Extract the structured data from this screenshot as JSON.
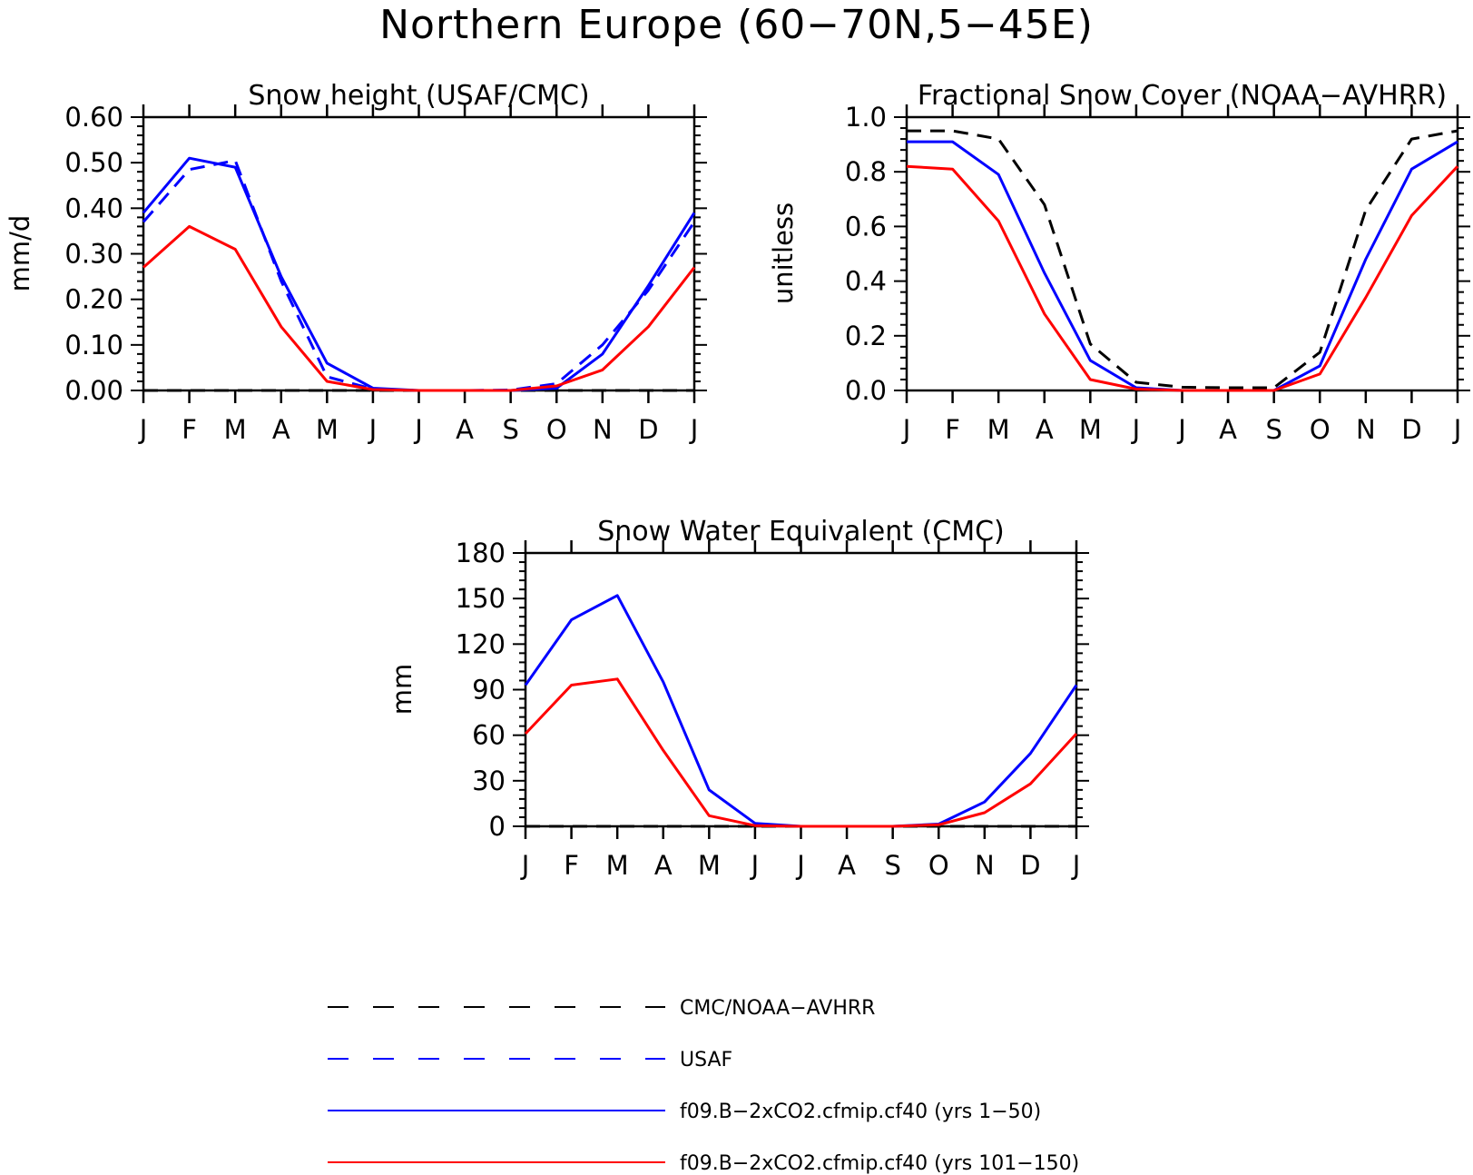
{
  "page_title": "Northern Europe (60−70N,5−45E)",
  "colors": {
    "observation": "#000000",
    "usaf": "#0000ff",
    "model_early": "#0000ff",
    "model_late": "#ff0000"
  },
  "legend": [
    {
      "label": "CMC/NOAA−AVHRR",
      "color": "#000000",
      "style": "dashed"
    },
    {
      "label": "USAF",
      "color": "#0000ff",
      "style": "dashed"
    },
    {
      "label": "f09.B−2xCO2.cfmip.cf40 (yrs 1−50)",
      "color": "#0000ff",
      "style": "solid"
    },
    {
      "label": "f09.B−2xCO2.cfmip.cf40 (yrs 101−150)",
      "color": "#ff0000",
      "style": "solid"
    }
  ],
  "chart_data": [
    {
      "type": "line",
      "title": "Snow height (USAF/CMC)",
      "ylabel": "mm/d",
      "xlabel": "",
      "categories": [
        "J",
        "F",
        "M",
        "A",
        "M",
        "J",
        "J",
        "A",
        "S",
        "O",
        "N",
        "D",
        "J"
      ],
      "ylim": [
        0,
        0.6
      ],
      "yticks": [
        "0.00",
        "0.10",
        "0.20",
        "0.30",
        "0.40",
        "0.50",
        "0.60"
      ],
      "grid": false,
      "series": [
        {
          "name": "CMC/NOAA−AVHRR",
          "color": "#000000",
          "style": "dashed",
          "values": [
            0,
            0,
            0,
            0,
            0,
            0,
            0,
            0,
            0,
            0,
            0,
            0,
            0
          ]
        },
        {
          "name": "USAF",
          "color": "#0000ff",
          "style": "dashed",
          "values": [
            0.37,
            0.485,
            0.505,
            0.24,
            0.03,
            0.003,
            0,
            0,
            0.001,
            0.015,
            0.1,
            0.22,
            0.37
          ]
        },
        {
          "name": "f09.B−2xCO2.cfmip.cf40 (yrs 1−50)",
          "color": "#0000ff",
          "style": "solid",
          "values": [
            0.39,
            0.51,
            0.49,
            0.25,
            0.06,
            0.005,
            0,
            0,
            0,
            0.005,
            0.08,
            0.23,
            0.39
          ]
        },
        {
          "name": "f09.B−2xCO2.cfmip.cf40 (yrs 101−150)",
          "color": "#ff0000",
          "style": "solid",
          "values": [
            0.27,
            0.36,
            0.31,
            0.14,
            0.02,
            0.002,
            0,
            0,
            0,
            0.01,
            0.045,
            0.14,
            0.27
          ]
        }
      ]
    },
    {
      "type": "line",
      "title": "Fractional Snow Cover (NOAA−AVHRR)",
      "ylabel": "unitless",
      "xlabel": "",
      "categories": [
        "J",
        "F",
        "M",
        "A",
        "M",
        "J",
        "J",
        "A",
        "S",
        "O",
        "N",
        "D",
        "J"
      ],
      "ylim": [
        0,
        1.0
      ],
      "yticks": [
        "0.0",
        "0.2",
        "0.4",
        "0.6",
        "0.8",
        "1.0"
      ],
      "grid": false,
      "series": [
        {
          "name": "CMC/NOAA−AVHRR",
          "color": "#000000",
          "style": "dashed",
          "values": [
            0.95,
            0.95,
            0.92,
            0.68,
            0.17,
            0.03,
            0.012,
            0.01,
            0.01,
            0.14,
            0.66,
            0.92,
            0.95
          ]
        },
        {
          "name": "f09.B−2xCO2.cfmip.cf40 (yrs 1−50)",
          "color": "#0000ff",
          "style": "solid",
          "values": [
            0.91,
            0.91,
            0.79,
            0.43,
            0.11,
            0.01,
            0,
            0,
            0,
            0.09,
            0.48,
            0.81,
            0.91
          ]
        },
        {
          "name": "f09.B−2xCO2.cfmip.cf40 (yrs 101−150)",
          "color": "#ff0000",
          "style": "solid",
          "values": [
            0.82,
            0.81,
            0.62,
            0.28,
            0.04,
            0.005,
            0,
            0,
            0,
            0.06,
            0.34,
            0.64,
            0.82
          ]
        }
      ]
    },
    {
      "type": "line",
      "title": "Snow Water Equivalent (CMC)",
      "ylabel": "mm",
      "xlabel": "",
      "categories": [
        "J",
        "F",
        "M",
        "A",
        "M",
        "J",
        "J",
        "A",
        "S",
        "O",
        "N",
        "D",
        "J"
      ],
      "ylim": [
        0,
        180
      ],
      "yticks": [
        "0",
        "30",
        "60",
        "90",
        "120",
        "150",
        "180"
      ],
      "grid": false,
      "series": [
        {
          "name": "CMC/NOAA−AVHRR",
          "color": "#000000",
          "style": "dashed",
          "values": [
            0,
            0,
            0,
            0,
            0,
            0,
            0,
            0,
            0,
            0,
            0,
            0,
            0
          ]
        },
        {
          "name": "f09.B−2xCO2.cfmip.cf40 (yrs 1−50)",
          "color": "#0000ff",
          "style": "solid",
          "values": [
            93,
            136,
            152,
            95,
            24,
            2,
            0,
            0,
            0,
            1.5,
            16,
            48,
            93
          ]
        },
        {
          "name": "f09.B−2xCO2.cfmip.cf40 (yrs 101−150)",
          "color": "#ff0000",
          "style": "solid",
          "values": [
            61,
            93,
            97,
            50,
            7,
            0.5,
            0,
            0,
            0,
            1,
            9,
            28,
            61
          ]
        }
      ]
    }
  ]
}
